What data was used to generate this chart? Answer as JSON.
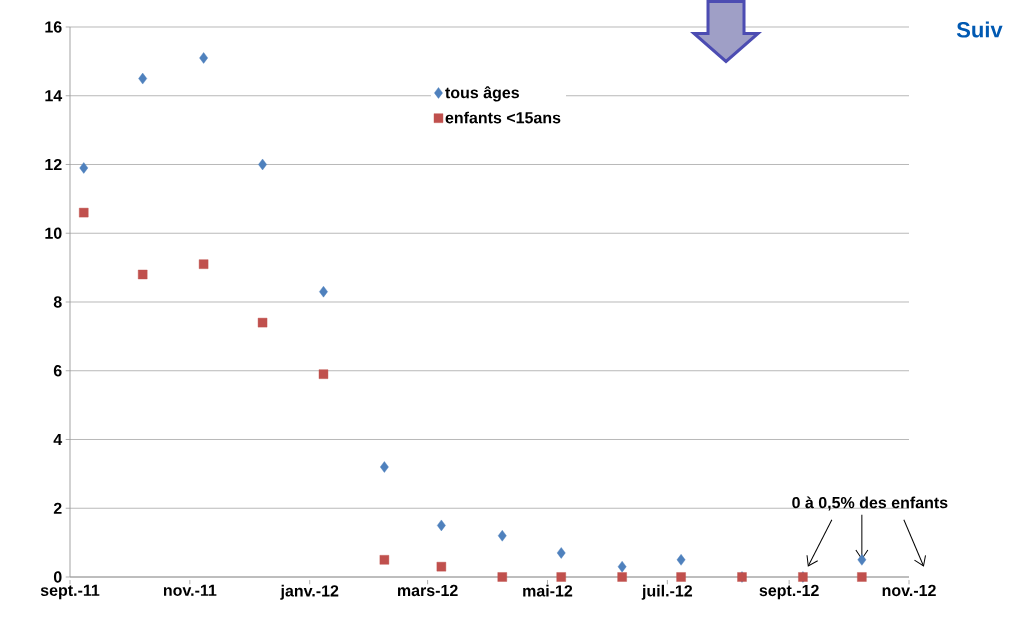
{
  "chart_data": {
    "type": "scatter",
    "x": [
      "2011-09-08",
      "2011-10-08",
      "2011-11-08",
      "2011-12-08",
      "2012-01-08",
      "2012-02-08",
      "2012-03-08",
      "2012-04-08",
      "2012-05-08",
      "2012-06-08",
      "2012-07-08",
      "2012-08-08",
      "2012-09-08",
      "2012-10-08"
    ],
    "series": [
      {
        "name": "tous âges",
        "color": "#4f81bd",
        "marker": "diamond",
        "values": [
          11.9,
          14.5,
          15.1,
          12.0,
          8.3,
          3.2,
          1.5,
          1.2,
          0.7,
          0.3,
          0.5,
          0,
          0,
          0.5
        ]
      },
      {
        "name": "enfants <15ans",
        "color": "#c0504d",
        "marker": "square",
        "values": [
          10.6,
          8.8,
          9.1,
          7.4,
          5.9,
          0.5,
          0.3,
          0,
          0,
          0,
          0,
          0,
          0,
          0
        ]
      }
    ],
    "xlim": [
      "2011-09-01",
      "2012-11-01"
    ],
    "xticks": [
      {
        "value": "2011-09-01",
        "label": "sept.-11"
      },
      {
        "value": "2011-11-01",
        "label": "nov.-11"
      },
      {
        "value": "2012-01-01",
        "label": "janv.-12"
      },
      {
        "value": "2012-03-01",
        "label": "mars-12"
      },
      {
        "value": "2012-05-01",
        "label": "mai-12"
      },
      {
        "value": "2012-07-01",
        "label": "juil.-12"
      },
      {
        "value": "2012-09-01",
        "label": "sept.-12"
      },
      {
        "value": "2012-11-01",
        "label": "nov.-12"
      }
    ],
    "ylim": [
      0,
      16
    ],
    "yticks": [
      0,
      2,
      4,
      6,
      8,
      10,
      12,
      14,
      16
    ],
    "grid": "y",
    "legend": "top",
    "annotations": [
      {
        "text": "0 à 0,5% des enfants",
        "x": "2012-10-08",
        "y": 0.5
      },
      "Suiv"
    ]
  }
}
